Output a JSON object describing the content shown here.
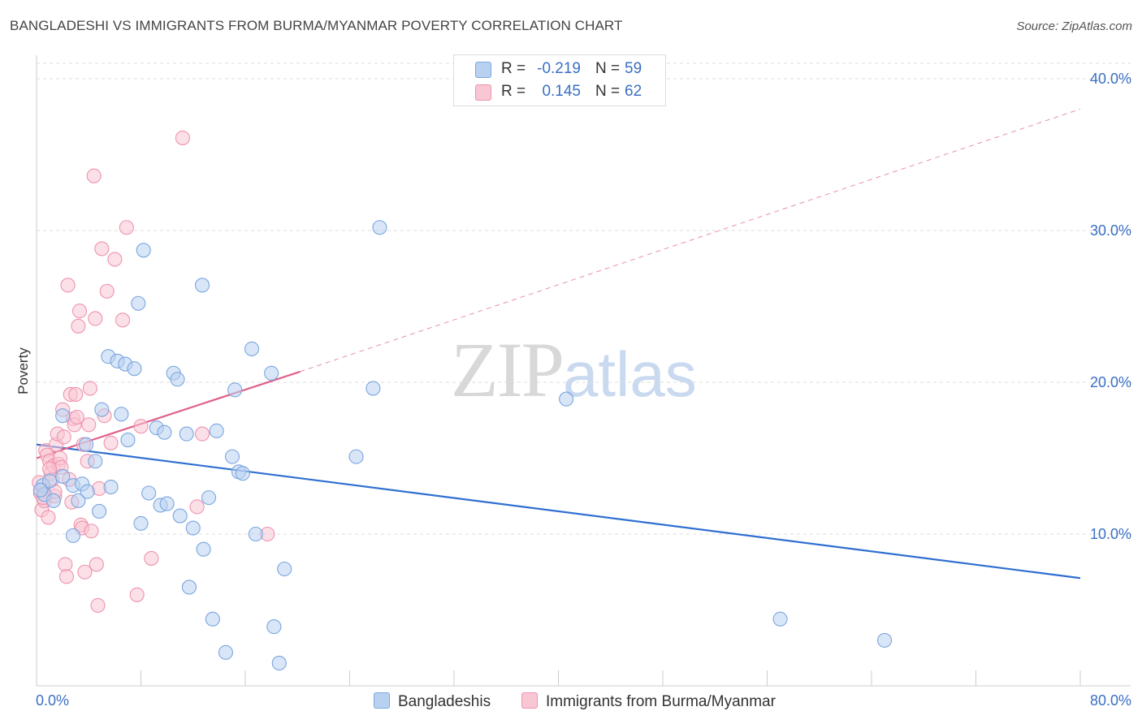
{
  "header": {
    "title": "BANGLADESHI VS IMMIGRANTS FROM BURMA/MYANMAR POVERTY CORRELATION CHART",
    "source": "Source: ZipAtlas.com"
  },
  "watermark": {
    "zip": "ZIP",
    "atlas": "atlas"
  },
  "legend": {
    "rows": [
      {
        "r_label": "R =",
        "r_value": "-0.219",
        "n_label": "N =",
        "n_value": "59",
        "color": "#b9d1f0",
        "border": "#7aa6e0"
      },
      {
        "r_label": "R =",
        "r_value": "0.145",
        "n_label": "N =",
        "n_value": "62",
        "color": "#f9c6d4",
        "border": "#ee93ae"
      }
    ]
  },
  "bottom_legend": {
    "items": [
      {
        "label": "Bangladeshis",
        "color": "#b9d1f0",
        "border": "#7aa6e0"
      },
      {
        "label": "Immigrants from Burma/Myanmar",
        "color": "#f9c6d4",
        "border": "#ee93ae"
      }
    ]
  },
  "chart_data": {
    "type": "scatter",
    "title": "BANGLADESHI VS IMMIGRANTS FROM BURMA/MYANMAR POVERTY CORRELATION CHART",
    "xlabel": "",
    "ylabel": "Poverty",
    "xlim": [
      0,
      80
    ],
    "ylim": [
      0,
      40
    ],
    "x_tick_labels": [
      "0.0%",
      "80.0%"
    ],
    "y_ticks": [
      10,
      20,
      30,
      40
    ],
    "y_tick_labels": [
      "10.0%",
      "20.0%",
      "30.0%",
      "40.0%"
    ],
    "grid": true,
    "series": [
      {
        "name": "Bangladeshis",
        "color": "#7aa6e0",
        "fill": "#b9d1f0",
        "line_color": "#2f6fd1",
        "trend": {
          "x": [
            0,
            80
          ],
          "y": [
            15.9,
            7.1
          ],
          "dashed_extension": false
        },
        "points": [
          [
            0.5,
            13.2
          ],
          [
            0.6,
            12.6
          ],
          [
            1.0,
            13.5
          ],
          [
            1.3,
            12.2
          ],
          [
            2.0,
            13.8
          ],
          [
            2.0,
            17.8
          ],
          [
            2.8,
            13.2
          ],
          [
            2.8,
            9.9
          ],
          [
            3.2,
            12.2
          ],
          [
            3.5,
            13.3
          ],
          [
            3.8,
            15.9
          ],
          [
            3.9,
            12.8
          ],
          [
            4.5,
            14.8
          ],
          [
            4.8,
            11.5
          ],
          [
            5.0,
            18.2
          ],
          [
            5.7,
            13.1
          ],
          [
            5.5,
            21.7
          ],
          [
            6.2,
            21.4
          ],
          [
            6.5,
            17.9
          ],
          [
            6.8,
            21.2
          ],
          [
            7.0,
            16.2
          ],
          [
            7.5,
            20.9
          ],
          [
            7.8,
            25.2
          ],
          [
            8.0,
            10.7
          ],
          [
            8.2,
            28.7
          ],
          [
            8.6,
            12.7
          ],
          [
            9.2,
            17.0
          ],
          [
            9.5,
            11.9
          ],
          [
            9.8,
            16.7
          ],
          [
            10.0,
            12.0
          ],
          [
            10.5,
            20.6
          ],
          [
            10.8,
            20.2
          ],
          [
            11.0,
            11.2
          ],
          [
            11.5,
            16.6
          ],
          [
            11.7,
            6.5
          ],
          [
            12.0,
            10.4
          ],
          [
            12.7,
            26.4
          ],
          [
            12.8,
            9.0
          ],
          [
            13.2,
            12.4
          ],
          [
            13.5,
            4.4
          ],
          [
            13.8,
            16.8
          ],
          [
            14.5,
            2.2
          ],
          [
            15.0,
            15.1
          ],
          [
            15.2,
            19.5
          ],
          [
            15.5,
            14.1
          ],
          [
            15.8,
            14.0
          ],
          [
            16.5,
            22.2
          ],
          [
            16.8,
            10.0
          ],
          [
            18.0,
            20.6
          ],
          [
            18.2,
            3.9
          ],
          [
            18.6,
            1.5
          ],
          [
            19.0,
            7.7
          ],
          [
            24.5,
            15.1
          ],
          [
            25.8,
            19.6
          ],
          [
            26.3,
            30.2
          ],
          [
            40.6,
            18.9
          ],
          [
            57.0,
            4.4
          ],
          [
            65.0,
            3.0
          ],
          [
            0.3,
            12.9
          ]
        ]
      },
      {
        "name": "Immigrants from Burma/Myanmar",
        "color": "#ee93ae",
        "fill": "#f9c6d4",
        "line_color": "#e0608a",
        "trend": {
          "x": [
            0,
            20.2
          ],
          "y": [
            15.0,
            20.7
          ],
          "dashed_extension": true,
          "extension_to": [
            80,
            38.0
          ]
        },
        "points": [
          [
            0.3,
            12.7
          ],
          [
            0.4,
            11.6
          ],
          [
            0.5,
            12.9
          ],
          [
            0.6,
            12.2
          ],
          [
            0.7,
            15.5
          ],
          [
            0.8,
            15.2
          ],
          [
            0.9,
            11.1
          ],
          [
            1.0,
            14.8
          ],
          [
            1.1,
            14.0
          ],
          [
            1.2,
            13.6
          ],
          [
            1.3,
            14.5
          ],
          [
            1.4,
            12.5
          ],
          [
            1.5,
            15.9
          ],
          [
            1.6,
            16.6
          ],
          [
            1.7,
            14.6
          ],
          [
            1.8,
            15.0
          ],
          [
            1.9,
            14.4
          ],
          [
            2.0,
            18.2
          ],
          [
            2.1,
            16.4
          ],
          [
            2.2,
            8.0
          ],
          [
            2.3,
            7.2
          ],
          [
            2.4,
            26.4
          ],
          [
            2.5,
            13.6
          ],
          [
            2.6,
            19.2
          ],
          [
            2.7,
            12.1
          ],
          [
            2.8,
            17.6
          ],
          [
            2.9,
            17.2
          ],
          [
            3.0,
            19.2
          ],
          [
            3.1,
            17.7
          ],
          [
            3.2,
            23.7
          ],
          [
            3.3,
            24.7
          ],
          [
            3.4,
            10.6
          ],
          [
            3.5,
            10.4
          ],
          [
            3.6,
            15.9
          ],
          [
            3.7,
            7.5
          ],
          [
            3.9,
            14.8
          ],
          [
            4.0,
            17.2
          ],
          [
            4.1,
            19.6
          ],
          [
            4.2,
            10.2
          ],
          [
            4.4,
            33.6
          ],
          [
            4.5,
            24.2
          ],
          [
            4.6,
            8.0
          ],
          [
            4.7,
            5.3
          ],
          [
            4.8,
            13.0
          ],
          [
            5.0,
            28.8
          ],
          [
            5.2,
            17.8
          ],
          [
            5.4,
            26.0
          ],
          [
            5.7,
            16.0
          ],
          [
            6.0,
            28.1
          ],
          [
            6.6,
            24.1
          ],
          [
            6.9,
            30.2
          ],
          [
            7.7,
            6.0
          ],
          [
            8.0,
            17.1
          ],
          [
            8.8,
            8.4
          ],
          [
            11.2,
            36.1
          ],
          [
            12.3,
            11.8
          ],
          [
            12.7,
            16.6
          ],
          [
            17.7,
            10.0
          ],
          [
            0.2,
            13.4
          ],
          [
            0.5,
            12.4
          ],
          [
            1.0,
            14.3
          ],
          [
            1.4,
            12.8
          ]
        ]
      }
    ]
  }
}
